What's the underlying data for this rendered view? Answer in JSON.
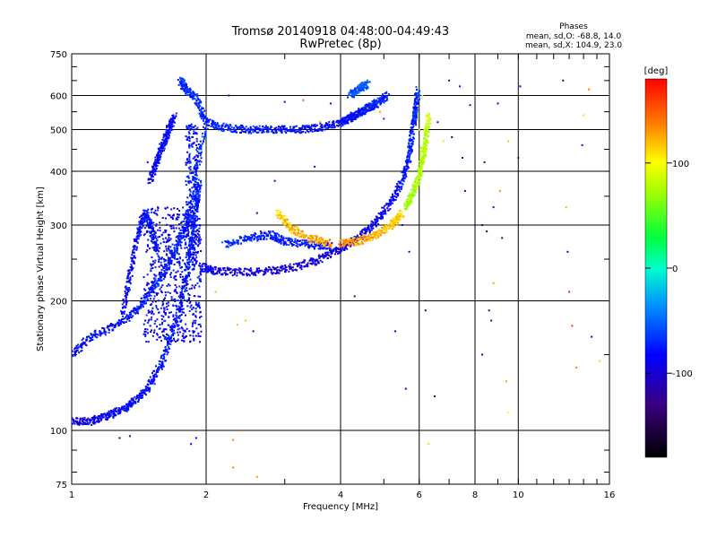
{
  "chart_data": {
    "type": "scatter",
    "title": "Tromsø 20140918 04:48:00-04:49:43",
    "subtitle": "RwPretec (8p)",
    "xlabel": "Frequency [MHz]",
    "ylabel": "Stationary phase Virtual Height [km]",
    "x_scale": "log",
    "y_scale": "log",
    "xlim": [
      1,
      16
    ],
    "ylim": [
      75,
      750
    ],
    "x_ticks": [
      1,
      2,
      4,
      6,
      8,
      10,
      16
    ],
    "x_tick_labels": [
      "1",
      "2",
      "4",
      "6",
      "8",
      "10",
      "16"
    ],
    "y_ticks": [
      75,
      100,
      200,
      300,
      400,
      500,
      600,
      750
    ],
    "y_tick_labels": [
      "75",
      "100",
      "200",
      "300",
      "400",
      "500",
      "600",
      "750"
    ],
    "grid": true,
    "phase_header": "Phases",
    "phase_stats": [
      "mean, sd,O: -68.8, 14.0",
      "mean, sd,X: 104.9, 23.0"
    ],
    "colorbar": {
      "label": "[deg]",
      "range": [
        -180,
        180
      ],
      "ticks": [
        100,
        0,
        -100
      ],
      "tick_labels": [
        "100",
        "0",
        "-100"
      ]
    },
    "traces": [
      {
        "points": [
          [
            1.0,
            105,
            -95
          ],
          [
            1.1,
            105,
            -90
          ],
          [
            1.2,
            108,
            -88
          ],
          [
            1.3,
            112,
            -85
          ],
          [
            1.4,
            118,
            -83
          ],
          [
            1.5,
            128,
            -80
          ],
          [
            1.6,
            145,
            -78
          ],
          [
            1.7,
            175,
            -75
          ],
          [
            1.8,
            220,
            -72
          ],
          [
            1.85,
            270,
            -70
          ],
          [
            1.9,
            330,
            -70
          ],
          [
            1.93,
            380,
            -68
          ]
        ]
      },
      {
        "points": [
          [
            1.0,
            150,
            -85
          ],
          [
            1.1,
            165,
            -82
          ],
          [
            1.25,
            175,
            -80
          ],
          [
            1.4,
            190,
            -78
          ],
          [
            1.5,
            210,
            -75
          ],
          [
            1.6,
            230,
            -73
          ],
          [
            1.7,
            260,
            -72
          ],
          [
            1.8,
            300,
            -70
          ],
          [
            1.9,
            400,
            -68
          ],
          [
            2.0,
            520,
            -66
          ]
        ]
      },
      {
        "points": [
          [
            1.3,
            185,
            -88
          ],
          [
            1.35,
            230,
            -85
          ],
          [
            1.4,
            280,
            -83
          ],
          [
            1.45,
            320,
            -80
          ],
          [
            1.5,
            300,
            -82
          ],
          [
            1.55,
            260,
            -85
          ]
        ]
      },
      {
        "points": [
          [
            1.5,
            380,
            -88
          ],
          [
            1.55,
            420,
            -85
          ],
          [
            1.6,
            460,
            -83
          ],
          [
            1.65,
            500,
            -82
          ],
          [
            1.7,
            540,
            -80
          ]
        ]
      },
      {
        "points": [
          [
            1.75,
            650,
            -70
          ],
          [
            1.8,
            620,
            -68
          ],
          [
            1.9,
            590,
            -68
          ],
          [
            2.0,
            520,
            -70
          ],
          [
            2.2,
            505,
            -72
          ],
          [
            2.5,
            500,
            -75
          ],
          [
            2.8,
            500,
            -78
          ],
          [
            3.2,
            500,
            -80
          ],
          [
            3.6,
            505,
            -82
          ],
          [
            4.0,
            520,
            -80
          ],
          [
            4.4,
            545,
            -78
          ],
          [
            4.8,
            575,
            -75
          ],
          [
            5.1,
            600,
            -70
          ]
        ]
      },
      {
        "points": [
          [
            4.2,
            600,
            -60
          ],
          [
            4.4,
            620,
            -58
          ],
          [
            4.6,
            640,
            -55
          ]
        ]
      },
      {
        "points": [
          [
            4.0,
            520,
            -82
          ],
          [
            4.3,
            540,
            -80
          ],
          [
            4.6,
            560,
            -75
          ],
          [
            4.8,
            575,
            -72
          ]
        ]
      },
      {
        "points": [
          [
            1.95,
            240,
            -85
          ],
          [
            2.1,
            235,
            -90
          ],
          [
            2.4,
            233,
            -95
          ],
          [
            2.8,
            235,
            -98
          ],
          [
            3.2,
            240,
            -100
          ],
          [
            3.6,
            250,
            -98
          ],
          [
            4.0,
            265,
            -95
          ],
          [
            4.4,
            280,
            -90
          ],
          [
            4.8,
            305,
            -88
          ],
          [
            5.2,
            340,
            -85
          ],
          [
            5.5,
            380,
            -80
          ],
          [
            5.7,
            430,
            -75
          ],
          [
            5.8,
            500,
            -72
          ],
          [
            5.9,
            560,
            -70
          ],
          [
            5.95,
            620,
            -68
          ]
        ]
      },
      {
        "points": [
          [
            2.2,
            270,
            -70
          ],
          [
            2.5,
            280,
            -72
          ],
          [
            2.8,
            285,
            -74
          ],
          [
            3.0,
            275,
            -75
          ],
          [
            3.4,
            270,
            -78
          ],
          [
            3.8,
            268,
            -80
          ]
        ]
      },
      {
        "points": [
          [
            2.9,
            320,
            110
          ],
          [
            3.1,
            295,
            120
          ],
          [
            3.4,
            280,
            125
          ],
          [
            3.8,
            272,
            130
          ]
        ]
      },
      {
        "points": [
          [
            4.0,
            272,
            130
          ],
          [
            4.4,
            275,
            128
          ],
          [
            4.8,
            285,
            125
          ],
          [
            5.2,
            300,
            118
          ],
          [
            5.5,
            320,
            110
          ]
        ]
      },
      {
        "points": [
          [
            5.6,
            330,
            70
          ],
          [
            5.8,
            355,
            72
          ],
          [
            6.0,
            390,
            75
          ],
          [
            6.1,
            430,
            78
          ],
          [
            6.2,
            470,
            80
          ],
          [
            6.3,
            540,
            85
          ]
        ]
      }
    ],
    "scatter_points": [
      [
        1.28,
        96,
        -140
      ],
      [
        1.35,
        97,
        -130
      ],
      [
        1.48,
        420,
        -110
      ],
      [
        1.85,
        93,
        -80
      ],
      [
        1.9,
        96,
        -100
      ],
      [
        2.1,
        210,
        120
      ],
      [
        2.35,
        176,
        120
      ],
      [
        2.3,
        95,
        140
      ],
      [
        2.4,
        100,
        150
      ],
      [
        2.3,
        82,
        140
      ],
      [
        2.55,
        170,
        -110
      ],
      [
        2.45,
        180,
        120
      ],
      [
        2.6,
        78,
        130
      ],
      [
        2.6,
        320,
        -130
      ],
      [
        2.65,
        290,
        -140
      ],
      [
        2.85,
        380,
        -100
      ],
      [
        3.5,
        410,
        -90
      ],
      [
        2.25,
        600,
        -100
      ],
      [
        3.8,
        575,
        -120
      ],
      [
        3.0,
        580,
        -110
      ],
      [
        3.3,
        585,
        150
      ],
      [
        3.6,
        520,
        140
      ],
      [
        4.3,
        205,
        -140
      ],
      [
        4.6,
        560,
        140
      ],
      [
        4.9,
        550,
        130
      ],
      [
        5.0,
        530,
        -70
      ],
      [
        5.3,
        170,
        -90
      ],
      [
        5.6,
        125,
        -90
      ],
      [
        5.7,
        260,
        -110
      ],
      [
        5.5,
        300,
        -100
      ],
      [
        6.0,
        500,
        80
      ],
      [
        6.1,
        600,
        90
      ],
      [
        6.2,
        190,
        -110
      ],
      [
        6.3,
        93,
        70
      ],
      [
        6.5,
        120,
        -130
      ],
      [
        6.6,
        520,
        -100
      ],
      [
        6.8,
        470,
        90
      ],
      [
        7.0,
        650,
        -120
      ],
      [
        7.1,
        480,
        -120
      ],
      [
        7.4,
        630,
        -80
      ],
      [
        7.6,
        360,
        -80
      ],
      [
        7.5,
        430,
        -100
      ],
      [
        7.8,
        570,
        -110
      ],
      [
        8.3,
        150,
        -100
      ],
      [
        8.3,
        300,
        -110
      ],
      [
        8.4,
        420,
        -130
      ],
      [
        8.5,
        290,
        -140
      ],
      [
        8.6,
        190,
        -130
      ],
      [
        8.7,
        180,
        -100
      ],
      [
        8.8,
        220,
        130
      ],
      [
        8.8,
        330,
        -80
      ],
      [
        9.0,
        575,
        -90
      ],
      [
        9.1,
        360,
        130
      ],
      [
        9.2,
        280,
        -120
      ],
      [
        9.4,
        130,
        130
      ],
      [
        9.5,
        110,
        100
      ],
      [
        9.5,
        470,
        120
      ],
      [
        10.0,
        430,
        -110
      ],
      [
        10.1,
        630,
        -80
      ],
      [
        12.6,
        650,
        -140
      ],
      [
        12.8,
        330,
        120
      ],
      [
        12.9,
        260,
        -90
      ],
      [
        13.0,
        210,
        170
      ],
      [
        13.2,
        175,
        160
      ],
      [
        13.5,
        140,
        140
      ],
      [
        13.9,
        460,
        -100
      ],
      [
        14.0,
        540,
        110
      ],
      [
        14.4,
        620,
        140
      ],
      [
        14.6,
        165,
        -110
      ],
      [
        15.2,
        145,
        110
      ]
    ]
  }
}
